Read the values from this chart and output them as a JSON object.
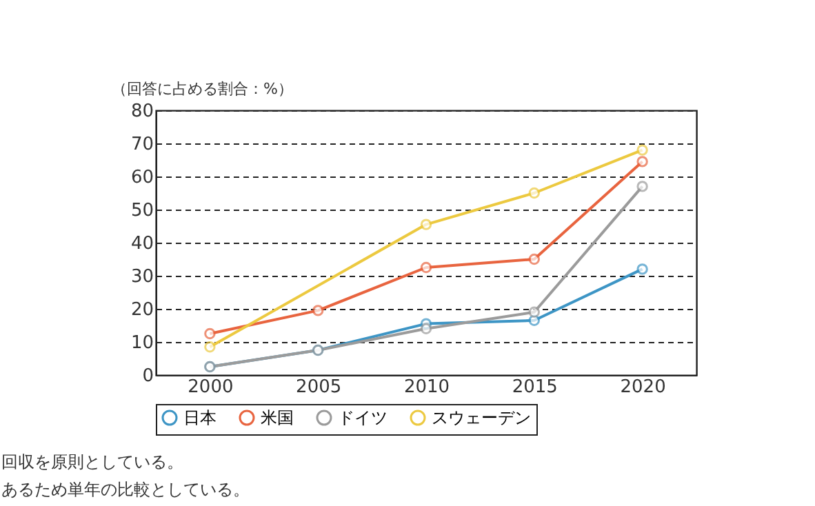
{
  "chart_data": {
    "type": "line",
    "ylabel": "（回答に占める割合：%）",
    "xlim": [
      1997.5,
      2022.5
    ],
    "xticks": [
      2000,
      2005,
      2010,
      2015,
      2020
    ],
    "ylim": [
      0,
      80
    ],
    "yticks": [
      0,
      10,
      20,
      30,
      40,
      50,
      60,
      70,
      80
    ],
    "grid": "y",
    "legend": "bottom",
    "marker": "circle",
    "line_style": "solid",
    "series": [
      {
        "name": "日本",
        "color": "#3d95c5",
        "x": [
          2000,
          2005,
          2010,
          2015,
          2020
        ],
        "values": [
          2.5,
          7.5,
          15.5,
          16.5,
          32
        ]
      },
      {
        "name": "米国",
        "color": "#e8643f",
        "x": [
          2000,
          2005,
          2010,
          2015,
          2020
        ],
        "values": [
          12.5,
          19.5,
          32.5,
          35,
          64.5
        ]
      },
      {
        "name": "ドイツ",
        "color": "#9b9b9b",
        "x": [
          2000,
          2005,
          2010,
          2015,
          2020
        ],
        "values": [
          2.5,
          7.5,
          14,
          19,
          57
        ]
      },
      {
        "name": "スウェーデン",
        "color": "#ecc940",
        "x": [
          2000,
          2010,
          2015,
          2020
        ],
        "values": [
          8.5,
          45.5,
          55,
          68
        ]
      }
    ],
    "annotations": [
      "回収を原則としている。",
      "あるため単年の比較としている。"
    ]
  }
}
